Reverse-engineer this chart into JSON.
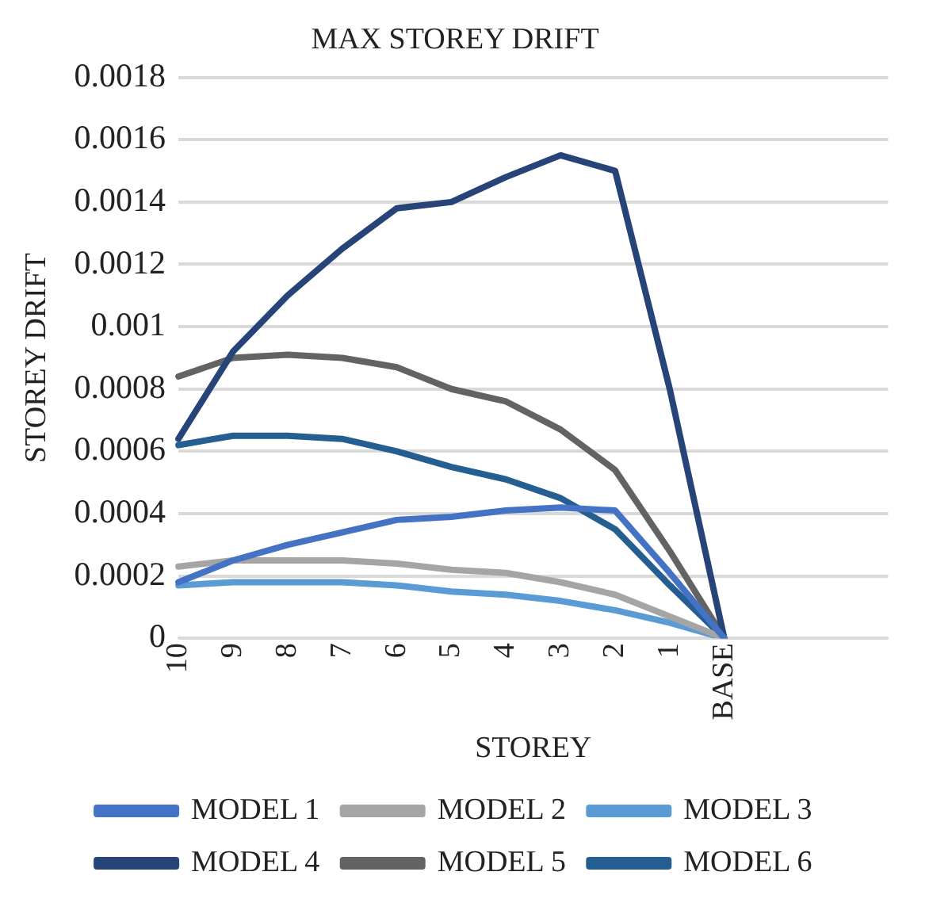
{
  "chart_data": {
    "type": "line",
    "title": "MAX STOREY DRIFT",
    "xlabel": "STOREY",
    "ylabel": "STOREY DRIFT",
    "categories": [
      "10",
      "9",
      "8",
      "7",
      "6",
      "5",
      "4",
      "3",
      "2",
      "1",
      "BASE",
      null,
      null,
      null
    ],
    "series": [
      {
        "name": "MODEL 1",
        "color": "#4472c4",
        "values": [
          0.00018,
          0.00025,
          0.0003,
          0.00034,
          0.00038,
          0.00039,
          0.00041,
          0.00042,
          0.00041,
          0.00021,
          0,
          null,
          null,
          null
        ]
      },
      {
        "name": "MODEL 2",
        "color": "#a5a5a5",
        "values": [
          0.00023,
          0.00025,
          0.00025,
          0.00025,
          0.00024,
          0.00022,
          0.00021,
          0.00018,
          0.00014,
          7e-05,
          0,
          null,
          null,
          null
        ]
      },
      {
        "name": "MODEL 3",
        "color": "#5b9bd5",
        "values": [
          0.00017,
          0.00018,
          0.00018,
          0.00018,
          0.00017,
          0.00015,
          0.00014,
          0.00012,
          9e-05,
          5e-05,
          0,
          null,
          null,
          null
        ]
      },
      {
        "name": "MODEL 4",
        "color": "#264478",
        "values": [
          0.00064,
          0.00092,
          0.0011,
          0.00125,
          0.00138,
          0.0014,
          0.00148,
          0.00155,
          0.0015,
          0.0008,
          0,
          null,
          null,
          null
        ]
      },
      {
        "name": "MODEL 5",
        "color": "#636363",
        "values": [
          0.00084,
          0.0009,
          0.00091,
          0.0009,
          0.00087,
          0.0008,
          0.00076,
          0.00067,
          0.00054,
          0.00028,
          0,
          null,
          null,
          null
        ]
      },
      {
        "name": "MODEL 6",
        "color": "#255e91",
        "values": [
          0.00062,
          0.00065,
          0.00065,
          0.00064,
          0.0006,
          0.00055,
          0.00051,
          0.00045,
          0.00035,
          0.00017,
          0,
          null,
          null,
          null
        ]
      }
    ],
    "ylim": [
      0,
      0.0018
    ],
    "yticks": [
      0,
      0.0002,
      0.0004,
      0.0006,
      0.0008,
      0.001,
      0.0012,
      0.0014,
      0.0016,
      0.0018
    ],
    "grid": "y",
    "legend": "bottom",
    "marker": "none",
    "line_style": "solid"
  }
}
